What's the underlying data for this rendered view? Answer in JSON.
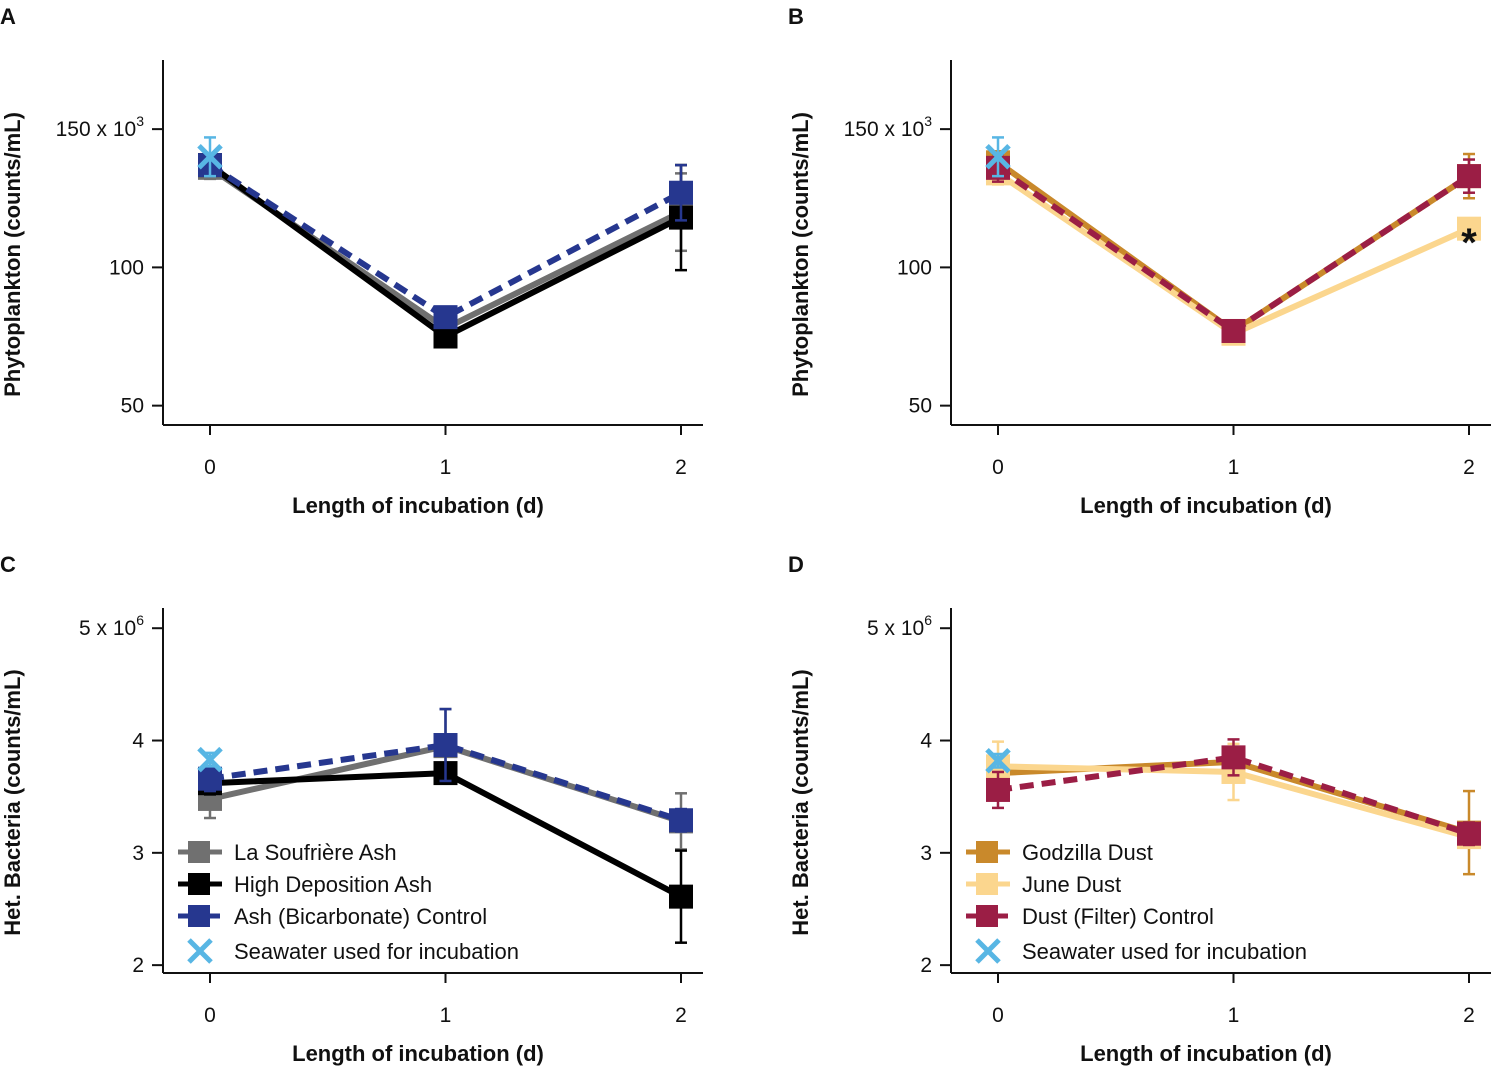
{
  "colors": {
    "la_soufriere": "#707070",
    "high_deposition": "#000000",
    "ash_control": "#26378f",
    "seawater": "#58b6e4",
    "godzilla": "#c9892b",
    "june": "#fbd68e",
    "dust_control": "#9b1e45"
  },
  "chart_data": [
    {
      "id": "A",
      "type": "line",
      "panel_label": "A",
      "xlabel": "Length of incubation (d)",
      "ylabel": "Phytoplankton (counts/mL)",
      "x_ticks": [
        "0",
        "1",
        "2"
      ],
      "y_ticks": [
        {
          "value": 50,
          "label": "50"
        },
        {
          "value": 100,
          "label": "100"
        },
        {
          "value": 150,
          "label": "150 x 10",
          "sup": "3"
        }
      ],
      "xlim": [
        -0.2,
        2.1
      ],
      "ylim": [
        43,
        175
      ],
      "series": [
        {
          "name": "La Soufrière Ash",
          "color_key": "la_soufriere",
          "style": "solid",
          "x": [
            0,
            1,
            2
          ],
          "y": [
            136,
            78,
            120
          ],
          "err": [
            4,
            3,
            14
          ]
        },
        {
          "name": "High Deposition Ash",
          "color_key": "high_deposition",
          "style": "solid",
          "x": [
            0,
            1,
            2
          ],
          "y": [
            137,
            75,
            118
          ],
          "err": [
            3,
            3,
            19
          ]
        },
        {
          "name": "Ash (Bicarbonate) Control",
          "color_key": "ash_control",
          "style": "dashed",
          "x": [
            0,
            1,
            2
          ],
          "y": [
            137,
            82,
            127
          ],
          "err": [
            3,
            3,
            10
          ]
        }
      ],
      "seawater": {
        "name": "Seawater used for incubation",
        "x": 0,
        "y": 140,
        "err": 7
      }
    },
    {
      "id": "B",
      "type": "line",
      "panel_label": "B",
      "xlabel": "Length of incubation (d)",
      "ylabel": "Phytoplankton (counts/mL)",
      "x_ticks": [
        "0",
        "1",
        "2"
      ],
      "y_ticks": [
        {
          "value": 50,
          "label": "50"
        },
        {
          "value": 100,
          "label": "100"
        },
        {
          "value": 150,
          "label": "150 x 10",
          "sup": "3"
        }
      ],
      "xlim": [
        -0.2,
        2.1
      ],
      "ylim": [
        43,
        175
      ],
      "series": [
        {
          "name": "Godzilla Dust",
          "color_key": "godzilla",
          "style": "solid",
          "x": [
            0,
            1,
            2
          ],
          "y": [
            138,
            77,
            133
          ],
          "err": [
            4,
            2,
            8
          ]
        },
        {
          "name": "June Dust",
          "color_key": "june",
          "style": "solid",
          "x": [
            0,
            1,
            2
          ],
          "y": [
            134,
            76,
            114
          ],
          "err": [
            4,
            2,
            3
          ]
        },
        {
          "name": "Dust (Filter) Control",
          "color_key": "dust_control",
          "style": "dashed",
          "x": [
            0,
            1,
            2
          ],
          "y": [
            136,
            77,
            133
          ],
          "err": [
            5,
            2,
            6
          ]
        }
      ],
      "seawater": {
        "name": "Seawater used for incubation",
        "x": 0,
        "y": 140,
        "err": 7
      },
      "annotations": [
        {
          "text": "*",
          "x": 2,
          "y": 112
        }
      ]
    },
    {
      "id": "C",
      "type": "line",
      "panel_label": "C",
      "xlabel": "Length of incubation (d)",
      "ylabel": "Het. Bacteria (counts/mL)",
      "x_ticks": [
        "0",
        "1",
        "2"
      ],
      "y_ticks": [
        {
          "value": 2,
          "label": "2"
        },
        {
          "value": 3,
          "label": "3"
        },
        {
          "value": 4,
          "label": "4"
        },
        {
          "value": 5,
          "label": "5 x 10",
          "sup": "6"
        }
      ],
      "xlim": [
        -0.2,
        2.1
      ],
      "ylim": [
        1.93,
        5.18
      ],
      "series": [
        {
          "name": "La Soufrière Ash",
          "color_key": "la_soufriere",
          "style": "solid",
          "x": [
            0,
            1,
            2
          ],
          "y": [
            3.48,
            3.95,
            3.28
          ],
          "err": [
            0.17,
            0.33,
            0.25
          ]
        },
        {
          "name": "High Deposition Ash",
          "color_key": "high_deposition",
          "style": "solid",
          "x": [
            0,
            1,
            2
          ],
          "y": [
            3.62,
            3.71,
            2.61
          ],
          "err": [
            0.1,
            0.06,
            0.41
          ]
        },
        {
          "name": "Ash (Bicarbonate) Control",
          "color_key": "ash_control",
          "style": "dashed",
          "x": [
            0,
            1,
            2
          ],
          "y": [
            3.66,
            3.96,
            3.29
          ],
          "err": [
            0.11,
            0.32,
            0.1
          ]
        }
      ],
      "seawater": {
        "name": "Seawater used for incubation",
        "x": 0,
        "y": 3.83,
        "err": 0.06
      },
      "legend": {
        "placement": "bottom-left",
        "entries": [
          "La Soufrière Ash",
          "High Deposition Ash",
          "Ash (Bicarbonate) Control",
          "Seawater used for incubation"
        ]
      }
    },
    {
      "id": "D",
      "type": "line",
      "panel_label": "D",
      "xlabel": "Length of incubation (d)",
      "ylabel": "Het. Bacteria (counts/mL)",
      "x_ticks": [
        "0",
        "1",
        "2"
      ],
      "y_ticks": [
        {
          "value": 2,
          "label": "2"
        },
        {
          "value": 3,
          "label": "3"
        },
        {
          "value": 4,
          "label": "4"
        },
        {
          "value": 5,
          "label": "5 x 10",
          "sup": "6"
        }
      ],
      "xlim": [
        -0.2,
        2.1
      ],
      "ylim": [
        1.93,
        5.18
      ],
      "series": [
        {
          "name": "Godzilla Dust",
          "color_key": "godzilla",
          "style": "solid",
          "x": [
            0,
            1,
            2
          ],
          "y": [
            3.71,
            3.81,
            3.18
          ],
          "err": [
            0.06,
            0.06,
            0.37
          ]
        },
        {
          "name": "June Dust",
          "color_key": "june",
          "style": "solid",
          "x": [
            0,
            1,
            2
          ],
          "y": [
            3.77,
            3.72,
            3.14
          ],
          "err": [
            0.22,
            0.25,
            0.05
          ]
        },
        {
          "name": "Dust (Filter) Control",
          "color_key": "dust_control",
          "style": "dashed",
          "x": [
            0,
            1,
            2
          ],
          "y": [
            3.56,
            3.85,
            3.17
          ],
          "err": [
            0.16,
            0.16,
            0.1
          ]
        }
      ],
      "seawater": {
        "name": "Seawater used for incubation",
        "x": 0,
        "y": 3.82,
        "err": 0.06
      },
      "legend": {
        "placement": "bottom-left",
        "entries": [
          "Godzilla Dust",
          "June Dust",
          "Dust (Filter) Control",
          "Seawater used for incubation"
        ]
      }
    }
  ]
}
